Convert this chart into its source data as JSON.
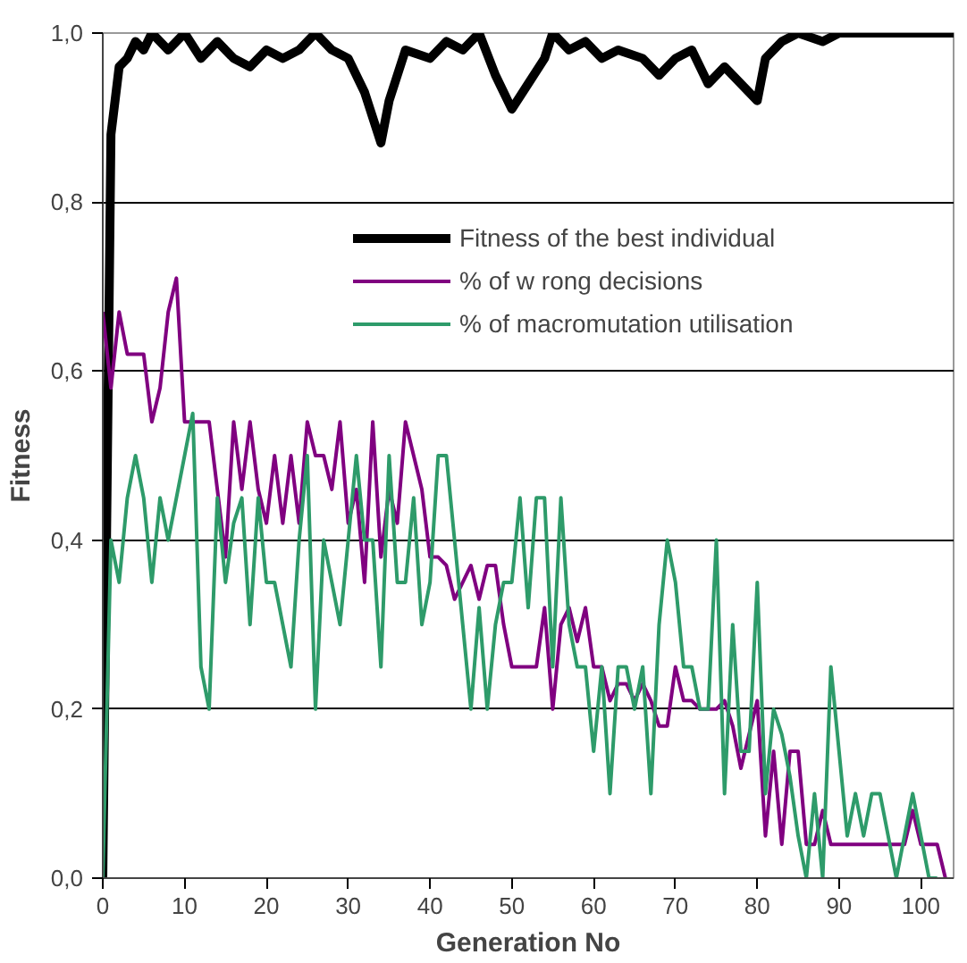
{
  "chart_data": {
    "type": "line",
    "xlabel": "Generation No",
    "ylabel": "Fitness",
    "xlim": [
      0,
      104
    ],
    "ylim": [
      0,
      1
    ],
    "xticks": [
      0,
      10,
      20,
      30,
      40,
      50,
      60,
      70,
      80,
      90,
      100
    ],
    "yticks": [
      {
        "value": 0,
        "label": "0,0"
      },
      {
        "value": 0.2,
        "label": "0,2"
      },
      {
        "value": 0.4,
        "label": "0,4"
      },
      {
        "value": 0.6,
        "label": "0,6"
      },
      {
        "value": 0.8,
        "label": "0,8"
      },
      {
        "value": 1.0,
        "label": "1,0"
      }
    ],
    "grid": "y",
    "legend": "top right",
    "marker": "none",
    "line_style": "solid",
    "series": [
      {
        "name": "Fitness of the best individual",
        "color": "#000000",
        "x": [
          0,
          1,
          2,
          3,
          4,
          5,
          6,
          8,
          10,
          12,
          14,
          16,
          18,
          20,
          22,
          24,
          26,
          28,
          30,
          32,
          34,
          35,
          37,
          40,
          42,
          44,
          46,
          48,
          50,
          52,
          54,
          55,
          57,
          59,
          61,
          63,
          66,
          68,
          70,
          72,
          74,
          76,
          78,
          80,
          81,
          83,
          85,
          88,
          90,
          104
        ],
        "values": [
          0,
          0.88,
          0.96,
          0.97,
          0.99,
          0.98,
          1.0,
          0.98,
          1.0,
          0.97,
          0.99,
          0.97,
          0.96,
          0.98,
          0.97,
          0.98,
          1.0,
          0.98,
          0.97,
          0.93,
          0.87,
          0.92,
          0.98,
          0.97,
          0.99,
          0.98,
          1.0,
          0.95,
          0.91,
          0.94,
          0.97,
          1.0,
          0.98,
          0.99,
          0.97,
          0.98,
          0.97,
          0.95,
          0.97,
          0.98,
          0.94,
          0.96,
          0.94,
          0.92,
          0.97,
          0.99,
          1.0,
          0.99,
          1.0,
          1.0
        ]
      },
      {
        "name": "% of w rong decisions",
        "color": "#800080",
        "x": [
          0,
          1,
          2,
          3,
          5,
          6,
          7,
          8,
          9,
          10,
          13,
          14,
          15,
          16,
          17,
          18,
          19,
          20,
          21,
          22,
          23,
          24,
          25,
          26,
          27,
          28,
          29,
          30,
          31,
          32,
          33,
          34,
          35,
          36,
          37,
          38,
          39,
          40,
          41,
          42,
          43,
          44,
          45,
          46,
          47,
          48,
          49,
          50,
          53,
          54,
          55,
          56,
          57,
          58,
          59,
          60,
          61,
          62,
          63,
          64,
          65,
          66,
          67,
          68,
          69,
          70,
          71,
          72,
          73,
          74,
          75,
          76,
          77,
          78,
          79,
          80,
          81,
          82,
          83,
          84,
          85,
          86,
          87,
          88,
          89,
          98,
          99,
          100,
          102,
          103
        ],
        "values": [
          0.67,
          0.58,
          0.67,
          0.62,
          0.62,
          0.54,
          0.58,
          0.67,
          0.71,
          0.54,
          0.54,
          0.46,
          0.38,
          0.54,
          0.46,
          0.54,
          0.46,
          0.42,
          0.5,
          0.42,
          0.5,
          0.42,
          0.54,
          0.5,
          0.5,
          0.46,
          0.54,
          0.42,
          0.46,
          0.35,
          0.54,
          0.38,
          0.46,
          0.42,
          0.54,
          0.5,
          0.46,
          0.38,
          0.38,
          0.37,
          0.33,
          0.35,
          0.37,
          0.33,
          0.37,
          0.37,
          0.3,
          0.25,
          0.25,
          0.32,
          0.2,
          0.3,
          0.32,
          0.28,
          0.32,
          0.25,
          0.25,
          0.21,
          0.23,
          0.23,
          0.21,
          0.23,
          0.21,
          0.18,
          0.18,
          0.25,
          0.21,
          0.21,
          0.2,
          0.2,
          0.2,
          0.21,
          0.18,
          0.13,
          0.17,
          0.21,
          0.05,
          0.15,
          0.04,
          0.15,
          0.15,
          0.04,
          0.04,
          0.08,
          0.04,
          0.04,
          0.08,
          0.04,
          0.04,
          0.0
        ]
      },
      {
        "name": "% of macromutation utilisation",
        "color": "#2e9b6a",
        "x": [
          0,
          1,
          2,
          3,
          4,
          5,
          6,
          7,
          8,
          9,
          10,
          11,
          12,
          13,
          14,
          15,
          16,
          17,
          18,
          19,
          20,
          21,
          22,
          23,
          24,
          25,
          26,
          27,
          28,
          29,
          30,
          31,
          32,
          33,
          34,
          35,
          36,
          37,
          38,
          39,
          40,
          41,
          42,
          43,
          44,
          45,
          46,
          47,
          48,
          49,
          50,
          51,
          52,
          53,
          54,
          55,
          56,
          57,
          58,
          59,
          60,
          61,
          62,
          63,
          64,
          65,
          66,
          67,
          68,
          69,
          70,
          71,
          72,
          73,
          74,
          75,
          76,
          77,
          78,
          79,
          80,
          81,
          82,
          83,
          84,
          85,
          86,
          87,
          88,
          89,
          90,
          91,
          92,
          93,
          94,
          95,
          96,
          97,
          98,
          99,
          100,
          101,
          102
        ],
        "values": [
          0,
          0.4,
          0.35,
          0.45,
          0.5,
          0.45,
          0.35,
          0.45,
          0.4,
          0.45,
          0.5,
          0.55,
          0.25,
          0.2,
          0.45,
          0.35,
          0.42,
          0.45,
          0.3,
          0.45,
          0.35,
          0.35,
          0.3,
          0.25,
          0.4,
          0.5,
          0.2,
          0.4,
          0.35,
          0.3,
          0.4,
          0.5,
          0.4,
          0.4,
          0.25,
          0.5,
          0.35,
          0.35,
          0.45,
          0.3,
          0.35,
          0.5,
          0.5,
          0.4,
          0.3,
          0.2,
          0.32,
          0.2,
          0.3,
          0.35,
          0.35,
          0.45,
          0.32,
          0.45,
          0.45,
          0.25,
          0.45,
          0.3,
          0.25,
          0.25,
          0.15,
          0.25,
          0.1,
          0.25,
          0.25,
          0.2,
          0.25,
          0.1,
          0.3,
          0.4,
          0.35,
          0.25,
          0.25,
          0.2,
          0.2,
          0.4,
          0.1,
          0.3,
          0.15,
          0.15,
          0.35,
          0.1,
          0.2,
          0.17,
          0.12,
          0.05,
          0,
          0.1,
          0,
          0.25,
          0.15,
          0.05,
          0.1,
          0.05,
          0.1,
          0.1,
          0.05,
          0,
          0.05,
          0.1,
          0.05,
          0,
          0
        ]
      }
    ]
  }
}
